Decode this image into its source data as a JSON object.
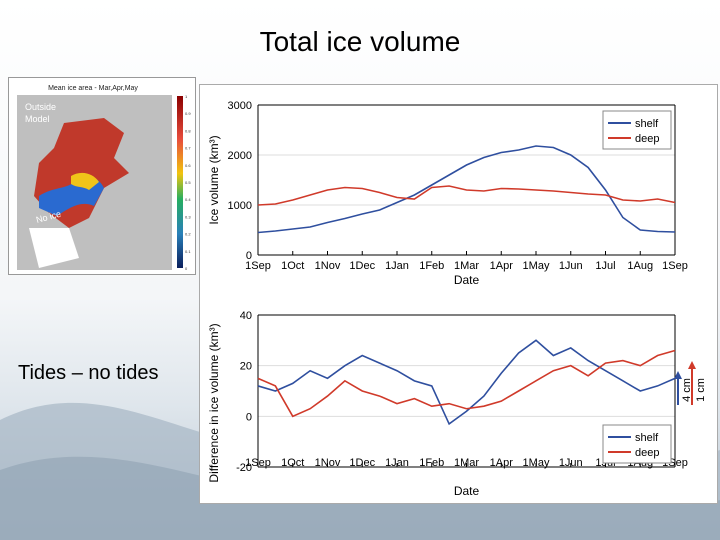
{
  "slide": {
    "title": "Total ice volume",
    "side_label": "Tides – no tides"
  },
  "map": {
    "title": "Mean ice area - Mar,Apr,May",
    "legend_outside": "Outside",
    "legend_model": "Model",
    "no_ice_label": "No ice",
    "colorbar_ticks": [
      "1",
      "0.9",
      "0.8",
      "0.7",
      "0.6",
      "0.5",
      "0.4",
      "0.3",
      "0.2",
      "0.1",
      "0"
    ]
  },
  "scale_markers": [
    {
      "label": "4 cm",
      "color": "#2f4f9f"
    },
    {
      "label": "1 cm",
      "color": "#d03a2a"
    }
  ],
  "chart_data": [
    {
      "type": "line",
      "ylabel": "Ice volume (km³)",
      "xlabel": "Date",
      "x_ticks": [
        "1Sep",
        "1Oct",
        "1Nov",
        "1Dec",
        "1Jan",
        "1Feb",
        "1Mar",
        "1Apr",
        "1May",
        "1Jun",
        "1Jul",
        "1Aug",
        "1Sep"
      ],
      "ylim": [
        0,
        3000
      ],
      "y_ticks": [
        0,
        1000,
        2000,
        3000
      ],
      "legend_position": "top-right",
      "series": [
        {
          "name": "shelf",
          "color": "#2f4f9f",
          "x": [
            0,
            0.5,
            1,
            1.5,
            2,
            2.5,
            3,
            3.5,
            4,
            4.5,
            5,
            5.5,
            6,
            6.5,
            7,
            7.5,
            8,
            8.5,
            9,
            9.5,
            10,
            10.5,
            11,
            11.5,
            12
          ],
          "values": [
            450,
            480,
            520,
            560,
            650,
            730,
            820,
            900,
            1050,
            1200,
            1400,
            1600,
            1800,
            1950,
            2050,
            2100,
            2180,
            2150,
            2000,
            1750,
            1300,
            750,
            500,
            470,
            460
          ]
        },
        {
          "name": "deep",
          "color": "#d03a2a",
          "x": [
            0,
            0.5,
            1,
            1.5,
            2,
            2.5,
            3,
            3.5,
            4,
            4.5,
            5,
            5.5,
            6,
            6.5,
            7,
            7.5,
            8,
            8.5,
            9,
            9.5,
            10,
            10.5,
            11,
            11.5,
            12
          ],
          "values": [
            1000,
            1020,
            1100,
            1200,
            1300,
            1350,
            1330,
            1250,
            1150,
            1120,
            1350,
            1380,
            1300,
            1280,
            1330,
            1320,
            1300,
            1280,
            1250,
            1220,
            1200,
            1100,
            1080,
            1120,
            1050
          ]
        }
      ]
    },
    {
      "type": "line",
      "ylabel": "Difference in ice volume (km³)",
      "xlabel": "Date",
      "x_ticks": [
        "1Sep",
        "1Oct",
        "1Nov",
        "1Dec",
        "1Jan",
        "1Feb",
        "1Mar",
        "1Apr",
        "1May",
        "1Jun",
        "1Jul",
        "1Aug",
        "1Sep"
      ],
      "ylim": [
        -20,
        40
      ],
      "y_ticks": [
        -20,
        0,
        20,
        40
      ],
      "legend_position": "bottom-right",
      "series": [
        {
          "name": "shelf",
          "color": "#2f4f9f",
          "x": [
            0,
            0.5,
            1,
            1.5,
            2,
            2.5,
            3,
            3.5,
            4,
            4.5,
            5,
            5.5,
            6,
            6.5,
            7,
            7.5,
            8,
            8.5,
            9,
            9.5,
            10,
            10.5,
            11,
            11.5,
            12
          ],
          "values": [
            12,
            10,
            13,
            18,
            15,
            20,
            24,
            21,
            18,
            14,
            12,
            -3,
            2,
            8,
            17,
            25,
            30,
            24,
            27,
            22,
            18,
            14,
            10,
            12,
            15
          ]
        },
        {
          "name": "deep",
          "color": "#d03a2a",
          "x": [
            0,
            0.5,
            1,
            1.5,
            2,
            2.5,
            3,
            3.5,
            4,
            4.5,
            5,
            5.5,
            6,
            6.5,
            7,
            7.5,
            8,
            8.5,
            9,
            9.5,
            10,
            10.5,
            11,
            11.5,
            12
          ],
          "values": [
            15,
            12,
            0,
            3,
            8,
            14,
            10,
            8,
            5,
            7,
            4,
            5,
            3,
            4,
            6,
            10,
            14,
            18,
            20,
            16,
            21,
            22,
            20,
            24,
            26
          ]
        }
      ]
    }
  ]
}
